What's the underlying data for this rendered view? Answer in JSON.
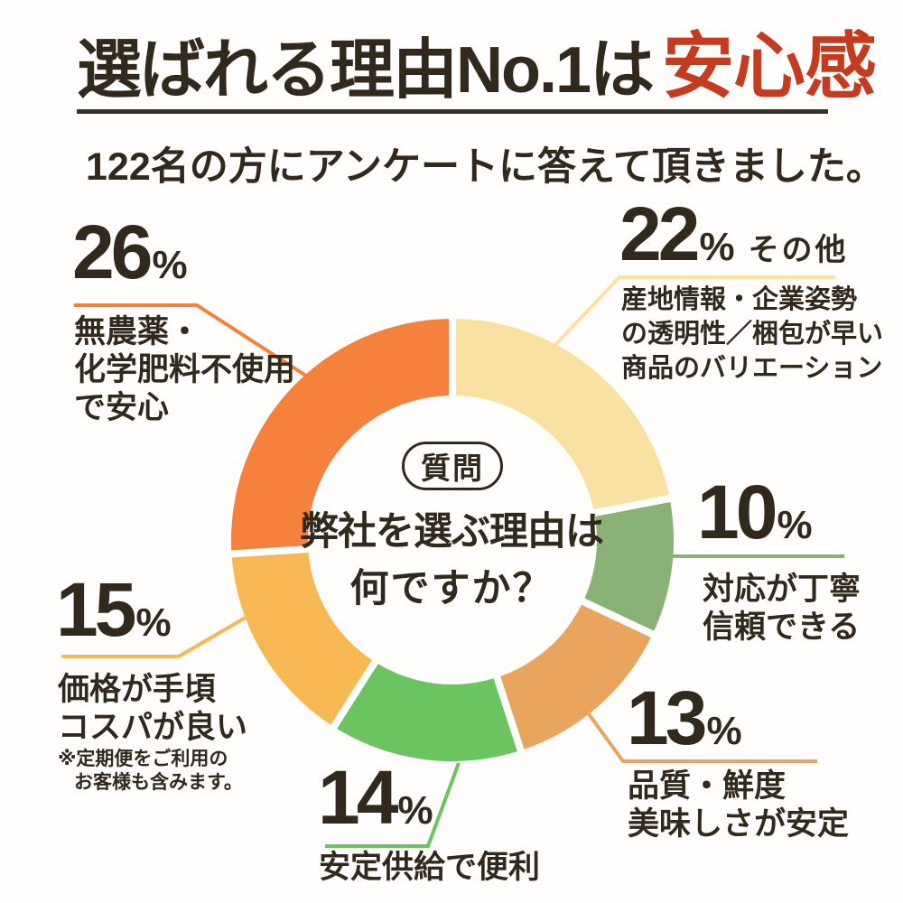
{
  "title": {
    "main": "選ばれる理由No.1は",
    "highlight": "安心感"
  },
  "subtitle": "122名の方にアンケートに答えて頂きました。",
  "center": {
    "badge": "質問",
    "question_line1": "弊社を選ぶ理由は",
    "question_line2": "何ですか？"
  },
  "colors": {
    "text_dark": "#32291e",
    "title_red": "#c43b20",
    "underline": "#3a3129",
    "background": "#fffefc",
    "separator": "#ffffff"
  },
  "chart_data": {
    "type": "pie",
    "donut": true,
    "title": "弊社を選ぶ理由は何ですか？",
    "sample_note": "122名の方にアンケートに答えて頂きました。",
    "start_angle_deg": 0,
    "direction": "clockwise",
    "legend_position": "around",
    "series": [
      {
        "id": "other",
        "value": 22,
        "display": "22",
        "unit": "%",
        "suffix": "その他",
        "color": "#f8e1a1",
        "desc": [
          "産地情報・企業姿勢",
          "の透明性／梱包が早い",
          "商品のバリエーション"
        ]
      },
      {
        "id": "polite",
        "value": 10,
        "display": "10",
        "unit": "%",
        "color": "#8ab176",
        "lines": [
          "対応が丁寧",
          "信頼できる"
        ]
      },
      {
        "id": "quality",
        "value": 13,
        "display": "13",
        "unit": "%",
        "color": "#e9a55d",
        "lines": [
          "品質・鮮度",
          "美味しさが安定"
        ]
      },
      {
        "id": "supply",
        "value": 14,
        "display": "14",
        "unit": "%",
        "color": "#6ac45f",
        "lines": [
          "安定供給で便利"
        ]
      },
      {
        "id": "price",
        "value": 15,
        "display": "15",
        "unit": "%",
        "color": "#f8b854",
        "lines": [
          "価格が手頃",
          "コスパが良い"
        ],
        "note": [
          "※定期便をご利用の",
          "お客様も含みます。"
        ]
      },
      {
        "id": "organic",
        "value": 26,
        "display": "26",
        "unit": "%",
        "color": "#f5813c",
        "lines": [
          "無農薬・",
          "化学肥料不使用",
          "で安心"
        ]
      }
    ]
  }
}
